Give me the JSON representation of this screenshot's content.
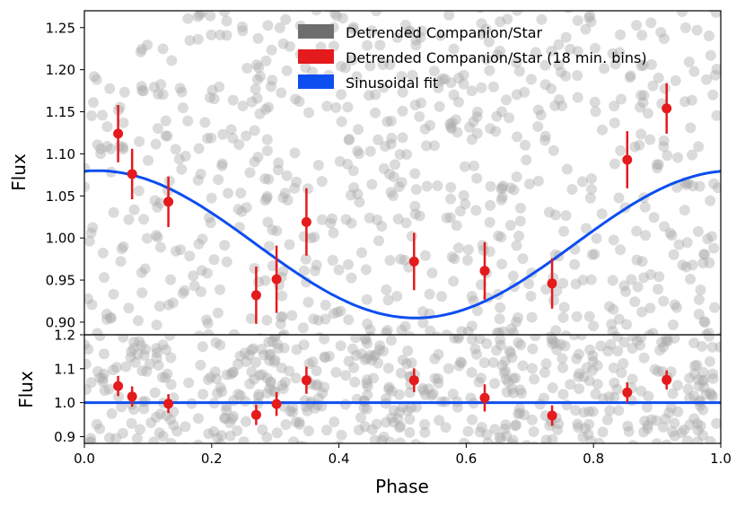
{
  "chart_data": [
    {
      "type": "scatter",
      "panel": "top",
      "ylabel": "Flux",
      "xlabel": "",
      "xlim": [
        0.0,
        1.0
      ],
      "ylim": [
        0.885,
        1.27
      ],
      "yticks": [
        "0.90",
        "0.95",
        "1.00",
        "1.05",
        "1.10",
        "1.15",
        "1.20",
        "1.25"
      ],
      "yticks_values": [
        0.9,
        0.95,
        1.0,
        1.05,
        1.1,
        1.15,
        1.2,
        1.25
      ],
      "legend": {
        "placement": "top-center",
        "entries": [
          {
            "label": "Detrended Companion/Star",
            "color": "#6e6e6e"
          },
          {
            "label": "Detrended Companion/Star (18 min. bins)",
            "color": "#e41a1c"
          },
          {
            "label": "Sinusoidal fit",
            "color": "#0d4ef0"
          }
        ]
      },
      "binned": {
        "name": "Detrended Companion/Star (18 min. bins)",
        "color": "#e41a1c",
        "x": [
          0.053,
          0.075,
          0.132,
          0.27,
          0.302,
          0.349,
          0.518,
          0.629,
          0.735,
          0.853,
          0.915
        ],
        "y": [
          1.124,
          1.076,
          1.043,
          0.932,
          0.951,
          1.019,
          0.972,
          0.961,
          0.946,
          1.093,
          1.154
        ],
        "yerr": [
          0.034,
          0.03,
          0.03,
          0.034,
          0.04,
          0.04,
          0.034,
          0.034,
          0.03,
          0.034,
          0.03
        ]
      },
      "fit": {
        "name": "Sinusoidal fit",
        "color": "#0d4ef0",
        "form": "offset + amplitude*cos(2*pi*(phase - phase0))",
        "offset": 0.9925,
        "amplitude": 0.0875,
        "phase0": 0.02
      },
      "raw": {
        "name": "Detrended Companion/Star",
        "color": "#a9a9a9",
        "count": 720,
        "y_center": 1.08,
        "y_spread": 0.2
      }
    },
    {
      "type": "scatter",
      "panel": "bottom",
      "ylabel": "Flux",
      "xlabel": "Phase",
      "xlim": [
        0.0,
        1.0
      ],
      "ylim": [
        0.88,
        1.2
      ],
      "yticks": [
        "0.9",
        "1.0",
        "1.1",
        "1.2"
      ],
      "yticks_values": [
        0.9,
        1.0,
        1.1,
        1.2
      ],
      "xticks": [
        "0.0",
        "0.2",
        "0.4",
        "0.6",
        "0.8",
        "1.0"
      ],
      "xticks_values": [
        0.0,
        0.2,
        0.4,
        0.6,
        0.8,
        1.0
      ],
      "binned": {
        "name": "Detrended Companion/Star (18 min. bins)",
        "color": "#e41a1c",
        "x": [
          0.053,
          0.075,
          0.132,
          0.27,
          0.302,
          0.349,
          0.518,
          0.629,
          0.735,
          0.853,
          0.915
        ],
        "y": [
          1.049,
          1.018,
          0.997,
          0.964,
          0.996,
          1.066,
          1.066,
          1.014,
          0.962,
          1.03,
          1.067
        ],
        "yerr": [
          0.03,
          0.03,
          0.028,
          0.03,
          0.035,
          0.04,
          0.035,
          0.04,
          0.03,
          0.03,
          0.028
        ]
      },
      "fit": {
        "name": "Sinusoidal fit",
        "color": "#0d4ef0",
        "form": "constant",
        "value": 1.0
      },
      "raw": {
        "name": "Detrended Companion/Star",
        "color": "#a9a9a9",
        "count": 620,
        "y_center": 1.0,
        "y_spread": 0.2
      }
    }
  ]
}
